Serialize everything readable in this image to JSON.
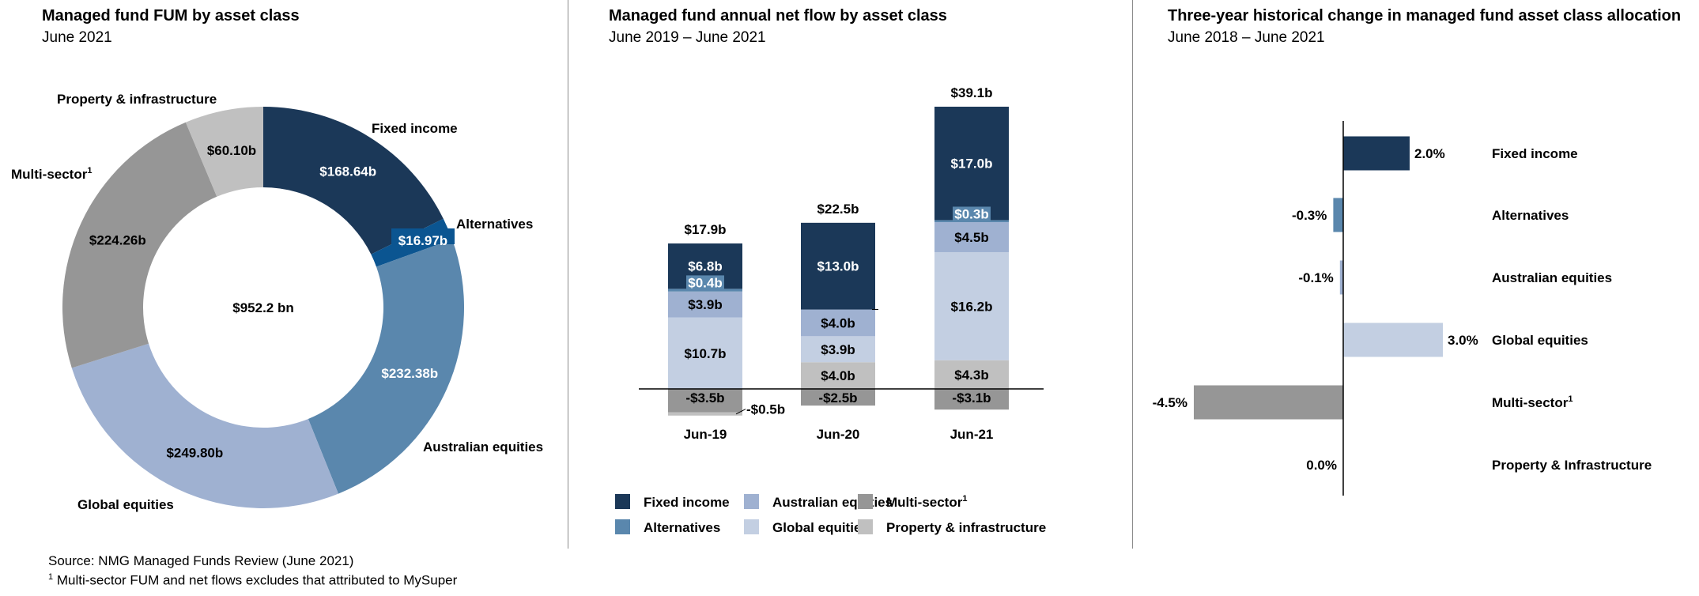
{
  "colors": {
    "fixed_income": "#1b3858",
    "alternatives_donut": "#0b5591",
    "alternatives": "#5a87ad",
    "australian_equities_donut": "#5a87ad",
    "australian_equities": "#9fb1d1",
    "global_equities_donut": "#9fb1d1",
    "global_equities": "#c3cfe2",
    "multi_sector": "#969696",
    "property_infrastructure": "#c0c0c0"
  },
  "footnotes": {
    "source": "Source: NMG Managed Funds Review (June 2021)",
    "note_marker": "1",
    "note": " Multi-sector FUM and net flows excludes that attributed to MySuper"
  },
  "chart_data": [
    {
      "type": "pie",
      "variant": "donut",
      "title": "Managed fund FUM by asset class",
      "subtitle": "June 2021",
      "center_label": "$952.2 bn",
      "categories": [
        "Fixed income",
        "Alternatives",
        "Australian equities",
        "Global equities",
        "Multi-sector",
        "Property & infrastructure"
      ],
      "category_superscripts": [
        "",
        "",
        "",
        "",
        "1",
        ""
      ],
      "values": [
        168.64,
        16.97,
        232.38,
        249.8,
        224.26,
        60.1
      ],
      "value_labels": [
        "$168.64b",
        "$16.97b",
        "$232.38b",
        "$249.80b",
        "$224.26b",
        "$60.10b"
      ],
      "unit": "$ billion",
      "start_angle": "12 o'clock, clockwise"
    },
    {
      "type": "bar",
      "stacked": true,
      "title": "Managed fund annual net flow by asset class",
      "subtitle": "June 2019 – June 2021",
      "categories": [
        "Jun-19",
        "Jun-20",
        "Jun-21"
      ],
      "series": [
        {
          "name": "Fixed income",
          "values": [
            6.8,
            13.0,
            17.0
          ],
          "labels": [
            "$6.8b",
            "$13.0b",
            "$17.0b"
          ]
        },
        {
          "name": "Alternatives",
          "values": [
            0.4,
            0.0,
            0.3
          ],
          "labels": [
            "$0.4b",
            "",
            "$0.3b"
          ]
        },
        {
          "name": "Australian equities",
          "values": [
            3.9,
            4.0,
            4.5
          ],
          "labels": [
            "$3.9b",
            "$4.0b",
            "$4.5b"
          ]
        },
        {
          "name": "Global equities",
          "values": [
            10.7,
            3.9,
            16.2
          ],
          "labels": [
            "$10.7b",
            "$3.9b",
            "$16.2b"
          ]
        },
        {
          "name": "Multi-sector",
          "superscript": "1",
          "values": [
            -3.5,
            -2.5,
            -3.1
          ],
          "labels": [
            "-$3.5b",
            "-$2.5b",
            "-$3.1b"
          ]
        },
        {
          "name": "Property & infrastructure",
          "values": [
            -0.5,
            4.0,
            4.3
          ],
          "labels": [
            "-$0.5b",
            "$4.0b",
            "$4.3b"
          ]
        }
      ],
      "totals": [
        17.9,
        22.5,
        39.1
      ],
      "total_labels": [
        "$17.9b",
        "$22.5b",
        "$39.1b"
      ],
      "unit": "$ billion",
      "ylim": [
        -4.5,
        43
      ],
      "grid": false,
      "legend": {
        "placement": "bottom",
        "rows": [
          [
            {
              "name": "Fixed income",
              "sup": ""
            },
            {
              "name": "Australian equities",
              "sup": ""
            },
            {
              "name": "Multi-sector",
              "sup": "1"
            }
          ],
          [
            {
              "name": "Alternatives",
              "sup": ""
            },
            {
              "name": "Global equities",
              "sup": ""
            },
            {
              "name": "Property & infrastructure",
              "sup": ""
            }
          ]
        ]
      }
    },
    {
      "type": "bar",
      "orientation": "horizontal",
      "title": "Three-year historical change in managed fund asset class allocation",
      "subtitle": "June 2018 – June 2021",
      "categories": [
        "Fixed income",
        "Alternatives",
        "Australian equities",
        "Global equities",
        "Multi-sector",
        "Property & Infrastructure"
      ],
      "category_superscripts": [
        "",
        "",
        "",
        "",
        "1",
        ""
      ],
      "values": [
        2.0,
        -0.3,
        -0.1,
        3.0,
        -4.5,
        0.0
      ],
      "value_labels": [
        "2.0%",
        "-0.3%",
        "-0.1%",
        "3.0%",
        "-4.5%",
        "0.0%"
      ],
      "unit": "percentage points",
      "xlim": [
        -4.5,
        3.0
      ],
      "grid": false
    }
  ]
}
